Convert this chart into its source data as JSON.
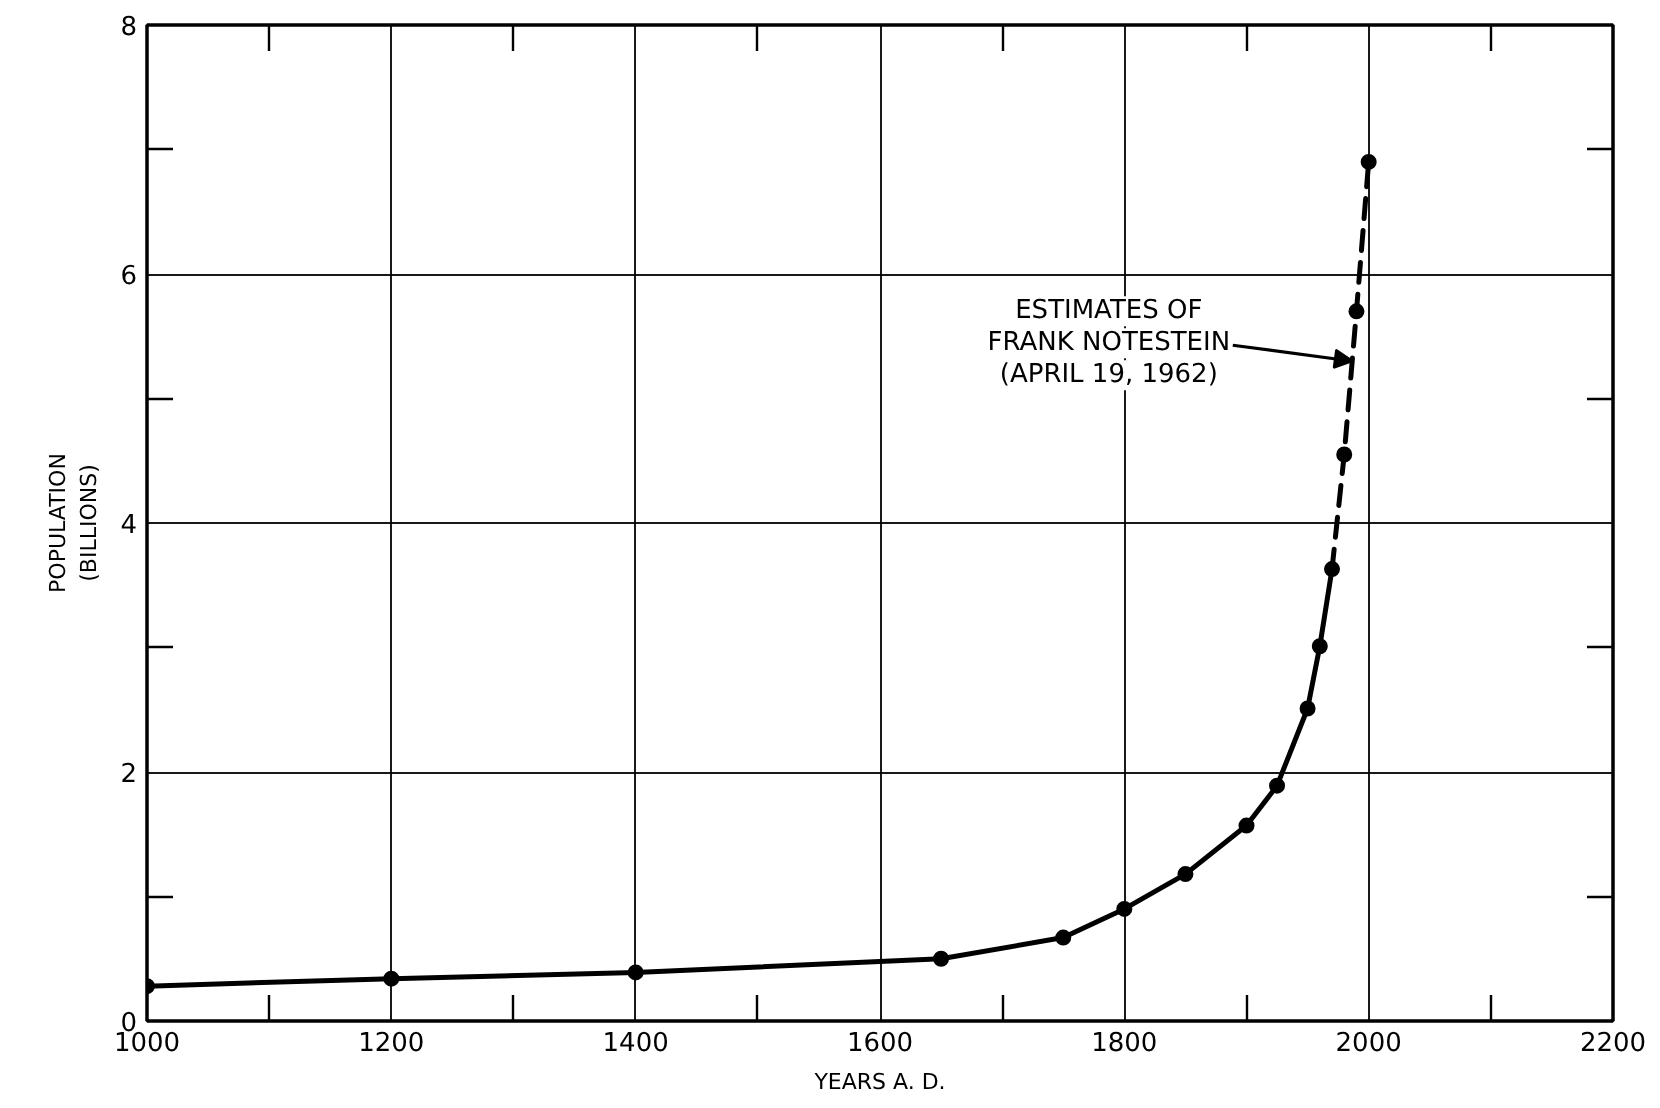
{
  "chart_data": {
    "type": "line",
    "xlabel": "YEARS A. D.",
    "ylabel": "POPULATION\n(BILLIONS)",
    "xlim": [
      1000,
      2200
    ],
    "xticks": [
      1000,
      {
        "value": 1100,
        "label": null
      },
      1200,
      {
        "value": 1300,
        "label": null
      },
      1400,
      {
        "value": 1500,
        "label": null
      },
      1600,
      {
        "value": 1700,
        "label": null
      },
      1800,
      {
        "value": 1900,
        "label": null
      },
      2000,
      {
        "value": 2100,
        "label": null
      },
      2200
    ],
    "ylim": [
      0,
      8
    ],
    "yticks": [
      0,
      {
        "value": 1,
        "label": null
      },
      2,
      {
        "value": 3,
        "label": null
      },
      4,
      {
        "value": 5,
        "label": null
      },
      6,
      {
        "value": 7,
        "label": null
      },
      8
    ],
    "grid": true,
    "marker": "circle",
    "series": [
      {
        "type": "scatter",
        "color": "#000000",
        "x": [
          1000,
          1200,
          1400,
          1650,
          1750,
          1800,
          1850,
          1900,
          1925,
          1950,
          1960,
          1970,
          1980,
          1990,
          2000
        ],
        "values": [
          0.28,
          0.34,
          0.39,
          0.5,
          0.67,
          0.9,
          1.18,
          1.57,
          1.89,
          2.51,
          3.01,
          3.63,
          4.55,
          5.7,
          6.9
        ]
      },
      {
        "marker": "none",
        "line_style": "solid",
        "color": "#000000",
        "x": [
          1000,
          1200,
          1400,
          1650,
          1750,
          1800,
          1850,
          1900,
          1925,
          1950,
          1960,
          1970
        ],
        "values": [
          0.28,
          0.34,
          0.39,
          0.5,
          0.67,
          0.9,
          1.18,
          1.57,
          1.89,
          2.51,
          3.01,
          3.63
        ]
      },
      {
        "marker": "none",
        "line_style": "dashed",
        "color": "#000000",
        "x": [
          1970,
          1980,
          1990,
          2000
        ],
        "values": [
          3.63,
          4.55,
          5.7,
          6.9
        ]
      }
    ],
    "annotations": [
      {
        "text": "ESTIMATES OF\nFRANK NOTESTEIN\n(APRIL 19, 1962)",
        "x": 1987,
        "y": 5.3
      }
    ]
  }
}
